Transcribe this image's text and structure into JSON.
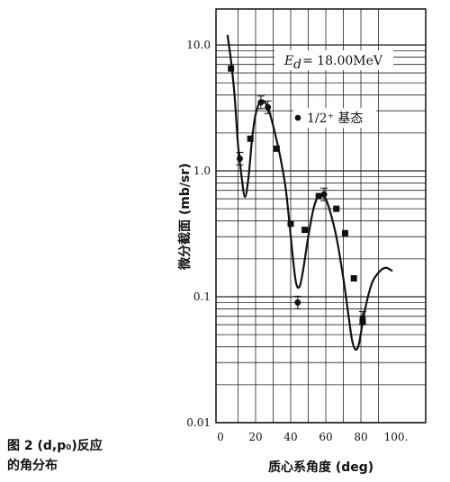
{
  "caption": {
    "line1": "图 2  (d,p₀)反应",
    "line2": "的角分布"
  },
  "chart_data": {
    "type": "scatter",
    "xlabel": "质心系角度 (deg)",
    "ylabel": "微分截面 (mb/sr)",
    "yscale": "log",
    "xlim": [
      0,
      100
    ],
    "ylim": [
      0.01,
      20
    ],
    "grid": true,
    "x_ticks": [
      "0",
      "20",
      "40",
      "60",
      "80",
      "100."
    ],
    "y_ticks": [
      "10.0",
      "1.0",
      "0.1",
      "0.01"
    ],
    "annotations": {
      "energy_label": "E",
      "energy_sub": "d",
      "energy_value": "= 18.00MeV",
      "legend_label": "1/2⁺ 基态"
    },
    "series": [
      {
        "marker": "square",
        "points": [
          [
            6,
            6.5
          ],
          [
            17,
            1.8
          ],
          [
            32,
            1.5
          ],
          [
            40,
            0.38
          ],
          [
            48,
            0.34
          ],
          [
            56,
            0.63
          ],
          [
            66,
            0.5
          ],
          [
            71,
            0.32
          ],
          [
            76,
            0.14
          ],
          [
            81,
            0.063
          ]
        ]
      },
      {
        "marker": "circle",
        "points": [
          [
            11,
            1.25
          ],
          [
            23,
            3.5
          ],
          [
            27,
            3.2
          ],
          [
            44,
            0.09
          ],
          [
            59,
            0.65
          ],
          [
            81,
            0.068
          ]
        ]
      },
      {
        "type": "line",
        "points": [
          [
            4,
            12
          ],
          [
            6,
            7.5
          ],
          [
            8,
            4
          ],
          [
            10,
            1.6
          ],
          [
            12,
            0.9
          ],
          [
            14,
            0.62
          ],
          [
            16,
            0.9
          ],
          [
            18,
            1.8
          ],
          [
            20,
            2.8
          ],
          [
            23,
            3.6
          ],
          [
            26,
            3.4
          ],
          [
            28,
            2.9
          ],
          [
            31,
            2
          ],
          [
            34,
            1.3
          ],
          [
            37,
            0.75
          ],
          [
            39,
            0.42
          ],
          [
            41,
            0.22
          ],
          [
            43,
            0.13
          ],
          [
            45,
            0.12
          ],
          [
            47,
            0.16
          ],
          [
            50,
            0.3
          ],
          [
            53,
            0.5
          ],
          [
            56,
            0.64
          ],
          [
            59,
            0.63
          ],
          [
            62,
            0.5
          ],
          [
            66,
            0.3
          ],
          [
            70,
            0.14
          ],
          [
            73,
            0.07
          ],
          [
            75,
            0.045
          ],
          [
            77,
            0.038
          ],
          [
            79,
            0.043
          ],
          [
            82,
            0.075
          ],
          [
            86,
            0.125
          ],
          [
            90,
            0.155
          ],
          [
            94,
            0.17
          ],
          [
            98,
            0.16
          ]
        ]
      }
    ]
  }
}
